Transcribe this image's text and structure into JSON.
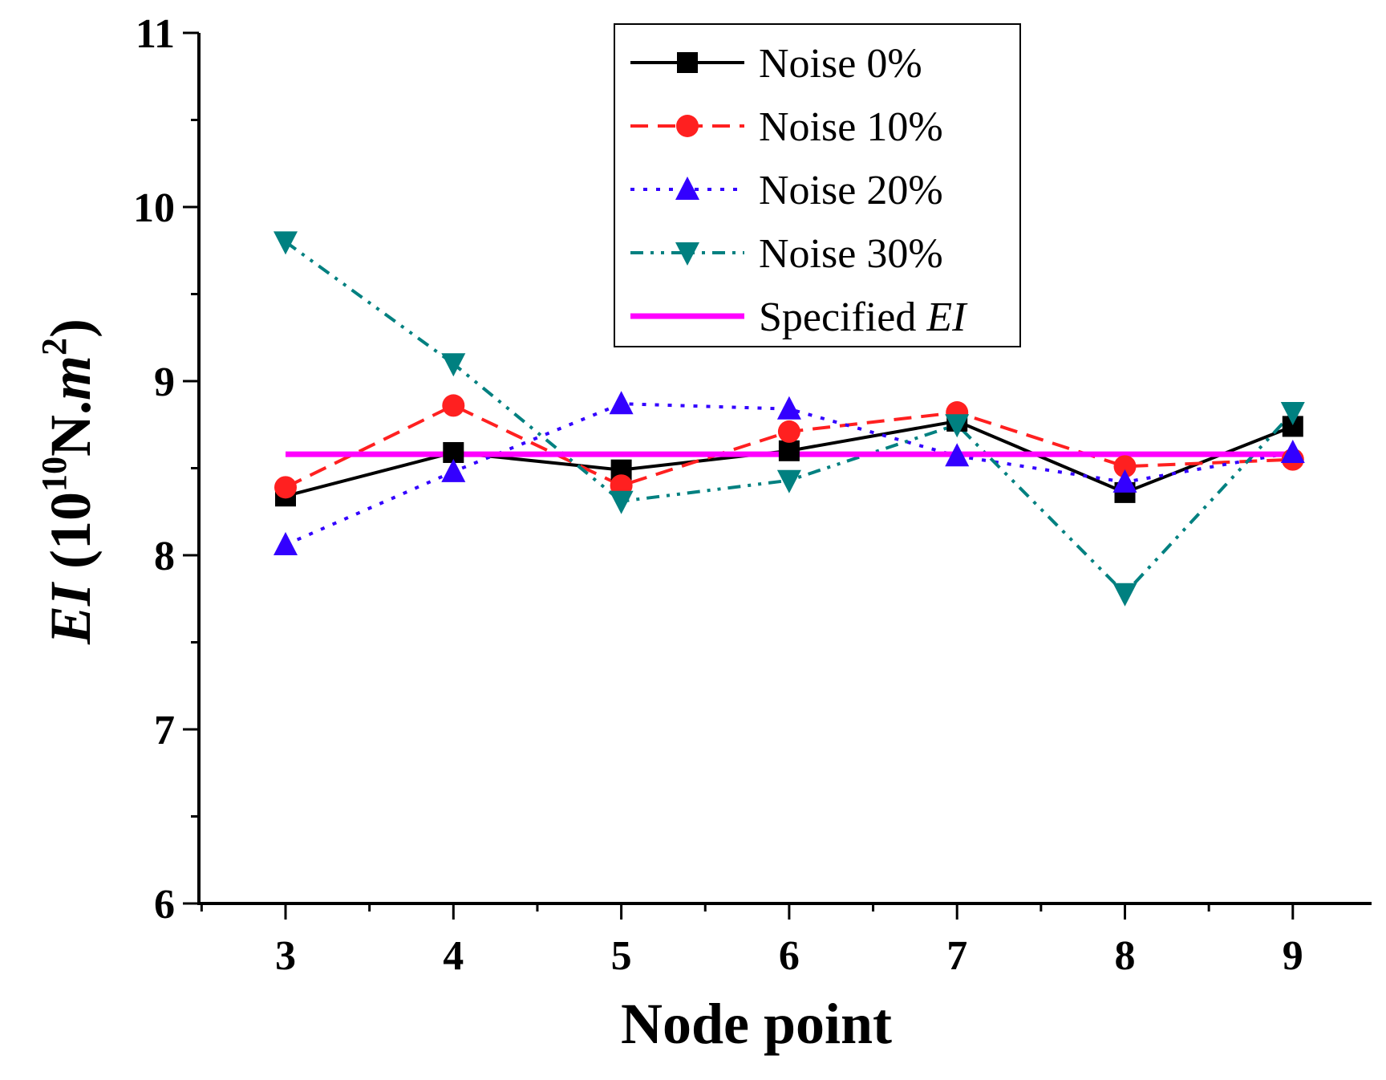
{
  "chart_data": {
    "type": "line",
    "title": "",
    "xlabel": "Node point",
    "ylabel": {
      "main": "EI (10",
      "exponent": "10",
      "unit": "N.",
      "unit_italic": "m",
      "unit_exponent": "2",
      "close": ")"
    },
    "x": [
      3,
      4,
      5,
      6,
      7,
      8,
      9
    ],
    "xlim": [
      2.5,
      9.5
    ],
    "ylim": [
      6,
      11
    ],
    "xticks": [
      "3",
      "4",
      "5",
      "6",
      "7",
      "8",
      "9"
    ],
    "yticks": [
      "6",
      "7",
      "8",
      "9",
      "10",
      "11"
    ],
    "grid": false,
    "legend_position": "top-right",
    "series": [
      {
        "name": "Noise 0%",
        "values": [
          8.34,
          8.59,
          8.49,
          8.6,
          8.77,
          8.36,
          8.74
        ],
        "color": "#000000",
        "dash": "solid",
        "marker": "square"
      },
      {
        "name": "Noise 10%",
        "values": [
          8.39,
          8.86,
          8.4,
          8.71,
          8.82,
          8.51,
          8.55
        ],
        "color": "#ff2020",
        "dash": "dashed",
        "marker": "circle"
      },
      {
        "name": "Noise 20%",
        "values": [
          8.06,
          8.48,
          8.87,
          8.84,
          8.57,
          8.42,
          8.59
        ],
        "color": "#3300ff",
        "dash": "dotted",
        "marker": "triangle-up"
      },
      {
        "name": "Noise 30%",
        "values": [
          9.8,
          9.1,
          8.31,
          8.43,
          8.75,
          7.78,
          8.82
        ],
        "color": "#008080",
        "dash": "dash-dot-dot",
        "marker": "triangle-down"
      }
    ],
    "reference_line": {
      "name": "Specified ",
      "name_italic": "EI",
      "value": 8.58,
      "color": "#ff00ff"
    }
  }
}
